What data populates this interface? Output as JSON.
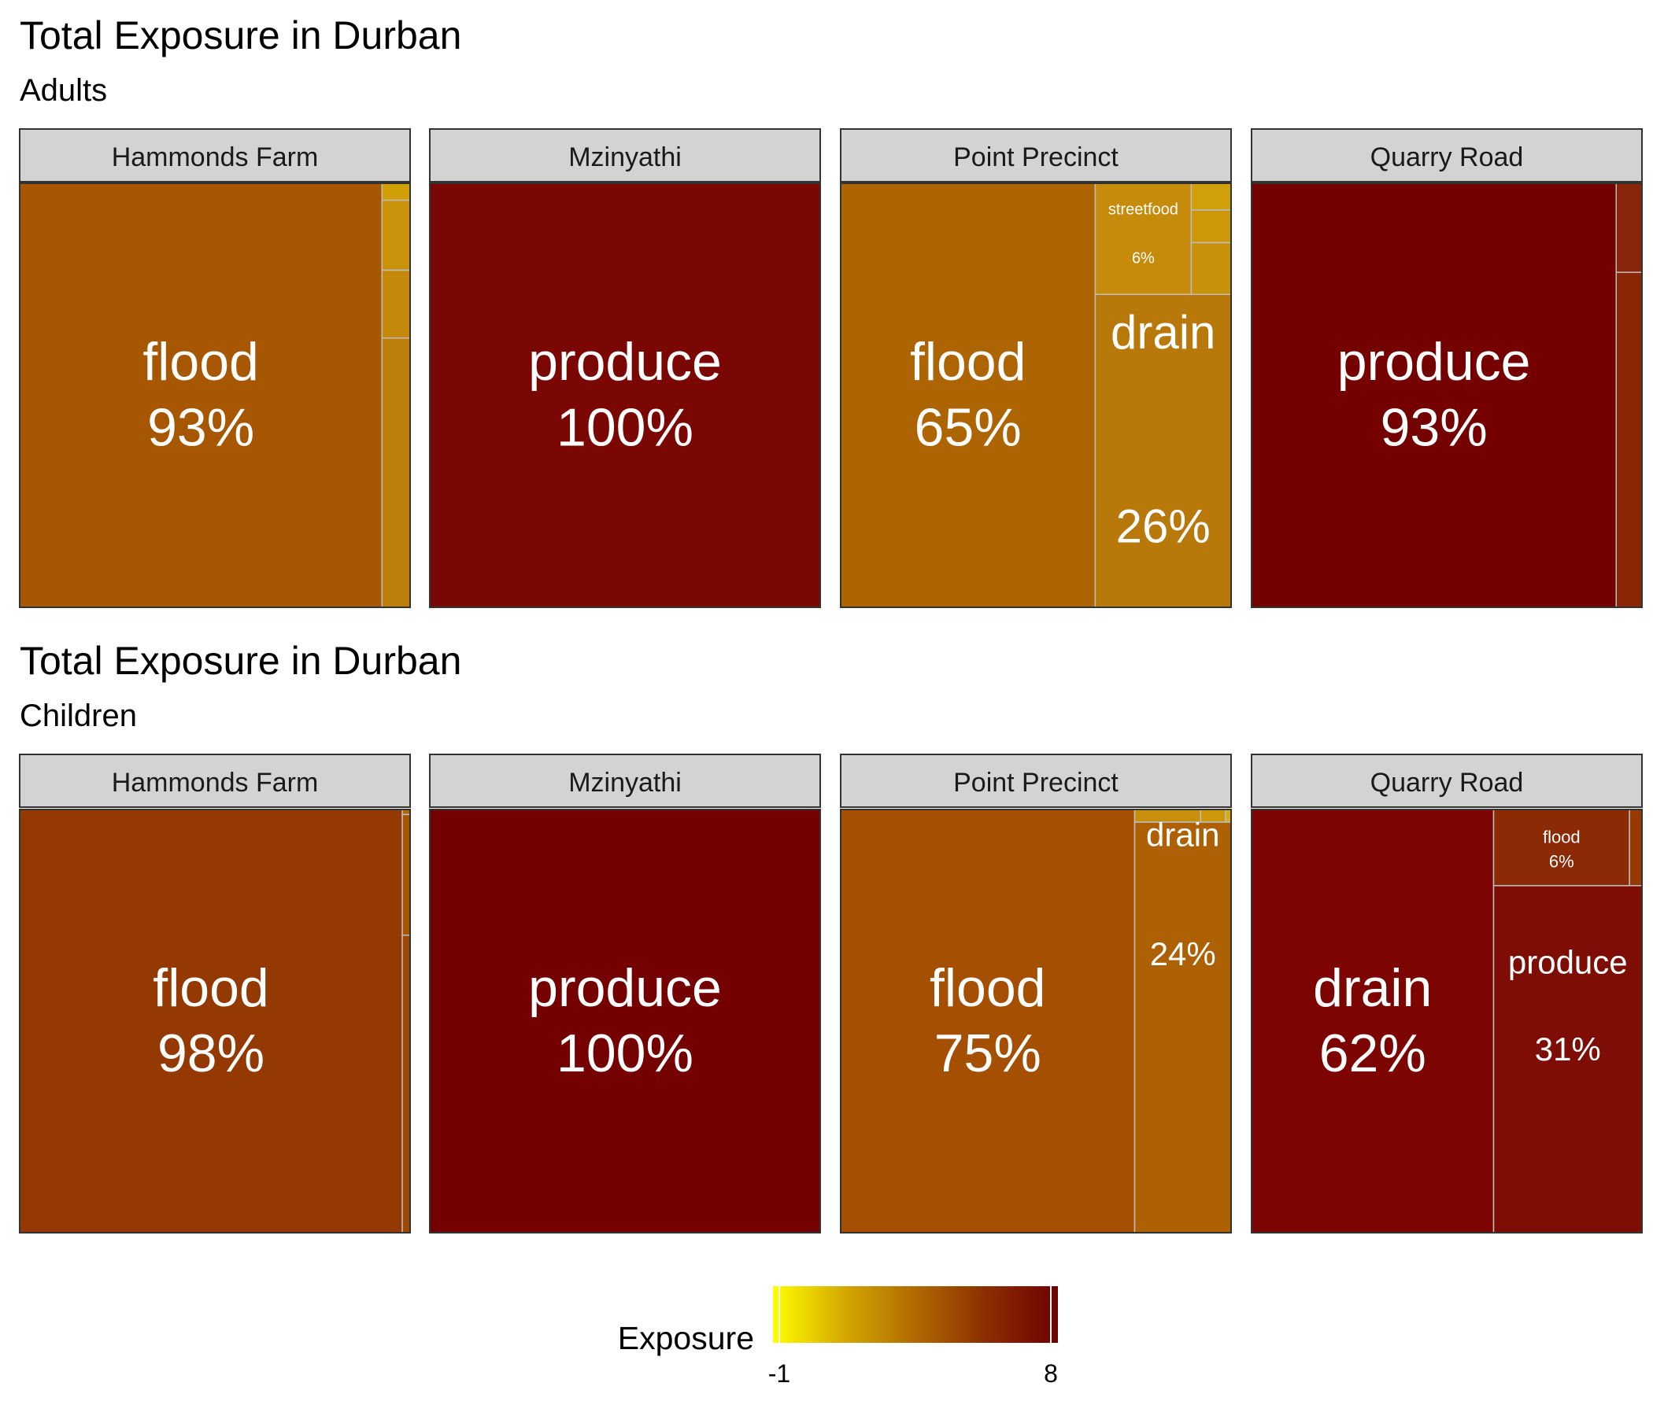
{
  "chart_data": [
    {
      "type": "treemap",
      "title": "Total Exposure in Durban",
      "subtitle": "Adults",
      "panels": [
        {
          "name": "Hammonds Farm",
          "tiles": [
            {
              "label": "flood",
              "value": 93,
              "pct_label": "93%",
              "color": "#a75702"
            },
            {
              "label": "",
              "value": 1,
              "color": "#d09e07"
            },
            {
              "label": "",
              "value": 1.5,
              "color": "#c8930a"
            },
            {
              "label": "",
              "value": 2.5,
              "color": "#c4880a"
            },
            {
              "label": "",
              "value": 2,
              "color": "#be7e0a"
            }
          ]
        },
        {
          "name": "Mzinyathi",
          "tiles": [
            {
              "label": "produce",
              "value": 100,
              "pct_label": "100%",
              "color": "#7a0703"
            }
          ]
        },
        {
          "name": "Point Precinct",
          "tiles": [
            {
              "label": "flood",
              "value": 65,
              "pct_label": "65%",
              "color": "#ad6403"
            },
            {
              "label": "streetfood",
              "value": 6,
              "pct_label": "6%",
              "color": "#c68b0b"
            },
            {
              "label": "",
              "value": 1,
              "color": "#d19f09"
            },
            {
              "label": "",
              "value": 1,
              "color": "#cc980a"
            },
            {
              "label": "",
              "value": 1,
              "color": "#c8910a"
            },
            {
              "label": "drain",
              "value": 26,
              "pct_label": "26%",
              "color": "#b8780a"
            }
          ]
        },
        {
          "name": "Quarry Road",
          "tiles": [
            {
              "label": "produce",
              "value": 93,
              "pct_label": "93%",
              "color": "#740000"
            },
            {
              "label": "",
              "value": 2.2,
              "color": "#88250a"
            },
            {
              "label": "",
              "value": 4.8,
              "color": "#8a2506"
            }
          ]
        }
      ]
    },
    {
      "type": "treemap",
      "title": "Total Exposure in Durban",
      "subtitle": "Children",
      "panels": [
        {
          "name": "Hammonds Farm",
          "tiles": [
            {
              "label": "flood",
              "value": 98,
              "pct_label": "98%",
              "color": "#953902"
            },
            {
              "label": "",
              "value": 0.3,
              "color": "#b16a08"
            },
            {
              "label": "",
              "value": 0.7,
              "color": "#a75504"
            },
            {
              "label": "",
              "value": 1,
              "color": "#9e4a05"
            }
          ]
        },
        {
          "name": "Mzinyathi",
          "tiles": [
            {
              "label": "produce",
              "value": 100,
              "pct_label": "100%",
              "color": "#740000"
            }
          ]
        },
        {
          "name": "Point Precinct",
          "tiles": [
            {
              "label": "flood",
              "value": 75,
              "pct_label": "75%",
              "color": "#a44f02"
            },
            {
              "label": "",
              "value": 2.2,
              "color": "#c78f0b"
            },
            {
              "label": "",
              "value": 0.9,
              "color": "#cc970a"
            },
            {
              "label": "",
              "value": 0.3,
              "color": "#d9ad10"
            },
            {
              "label": "drain",
              "value": 24,
              "pct_label": "24%",
              "color": "#ad6104"
            }
          ]
        },
        {
          "name": "Quarry Road",
          "tiles": [
            {
              "label": "drain",
              "value": 62,
              "pct_label": "62%",
              "color": "#7c0502"
            },
            {
              "label": "flood",
              "value": 6,
              "pct_label": "6%",
              "color": "#8c2a05"
            },
            {
              "label": "",
              "value": 0.6,
              "color": "#983805"
            },
            {
              "label": "produce",
              "value": 31,
              "pct_label": "31%",
              "color": "#7e0e05"
            }
          ]
        }
      ]
    }
  ],
  "legend": {
    "title": "Exposure",
    "min_label": "-1",
    "max_label": "8",
    "colors": [
      "#ffff00",
      "#d4a800",
      "#b06a00",
      "#8a2e00",
      "#700000"
    ]
  }
}
